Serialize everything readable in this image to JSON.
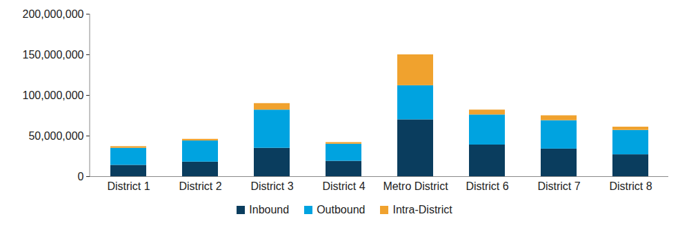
{
  "chart_data": {
    "type": "bar",
    "stacked": true,
    "grid": false,
    "legend": "bottom",
    "categories": [
      "District 1",
      "District 2",
      "District 3",
      "District 4",
      "Metro District",
      "District 6",
      "District 7",
      "District 8"
    ],
    "series": [
      {
        "name": "Inbound",
        "color": "#0a3d5e",
        "values": [
          14000000,
          18000000,
          35000000,
          19000000,
          70000000,
          39000000,
          34000000,
          27000000
        ]
      },
      {
        "name": "Outbound",
        "color": "#00a3e0",
        "values": [
          21000000,
          26000000,
          47000000,
          21000000,
          42000000,
          37000000,
          35000000,
          30000000
        ]
      },
      {
        "name": "Intra-District",
        "color": "#f0a22e",
        "values": [
          2000000,
          2000000,
          8000000,
          2000000,
          38000000,
          6000000,
          6000000,
          4000000
        ]
      }
    ],
    "ylim": [
      0,
      200000000
    ],
    "yticks": [
      0,
      {
        "value": 50000000,
        "label": "50,000,000"
      },
      {
        "value": 100000000,
        "label": "100,000,000"
      },
      {
        "value": 150000000,
        "label": "150,000,000"
      },
      {
        "value": 200000000,
        "label": "200,000,000"
      }
    ]
  }
}
